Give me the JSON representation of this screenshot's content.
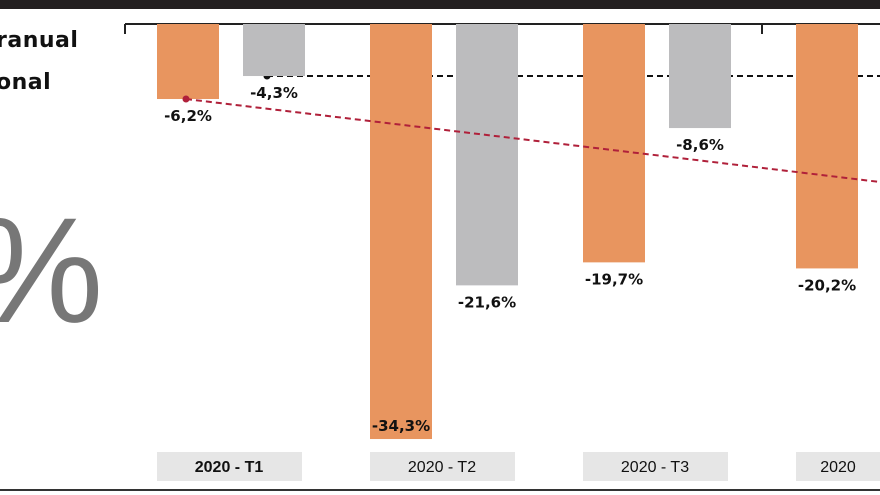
{
  "legend": {
    "line1": "ranual",
    "line2": "onal",
    "big_symbol": "%"
  },
  "chart_data": {
    "type": "bar",
    "categories": [
      "2020 - T1",
      "2020 - T2",
      "2020 - T3",
      "2020"
    ],
    "series": [
      {
        "color": "#e8955f",
        "values": [
          -6.2,
          -34.3,
          -19.7,
          -20.2
        ],
        "labels": [
          "-6,2%",
          "-34,3%",
          "-19,7%",
          "-20,2%"
        ]
      },
      {
        "color": "#bcbcbe",
        "values": [
          -4.3,
          -21.6,
          -8.6,
          null
        ],
        "labels": [
          "-4,3%",
          "-21,6%",
          "-8,6%",
          ""
        ]
      }
    ],
    "reference_lines": [
      {
        "color": "#111111",
        "style": "dashed",
        "value": -4.3
      },
      {
        "color": "#b0203a",
        "style": "dashed",
        "from_value": -6.2,
        "trend": "declining"
      }
    ],
    "ylim": [
      -35,
      0
    ],
    "grid": false
  }
}
